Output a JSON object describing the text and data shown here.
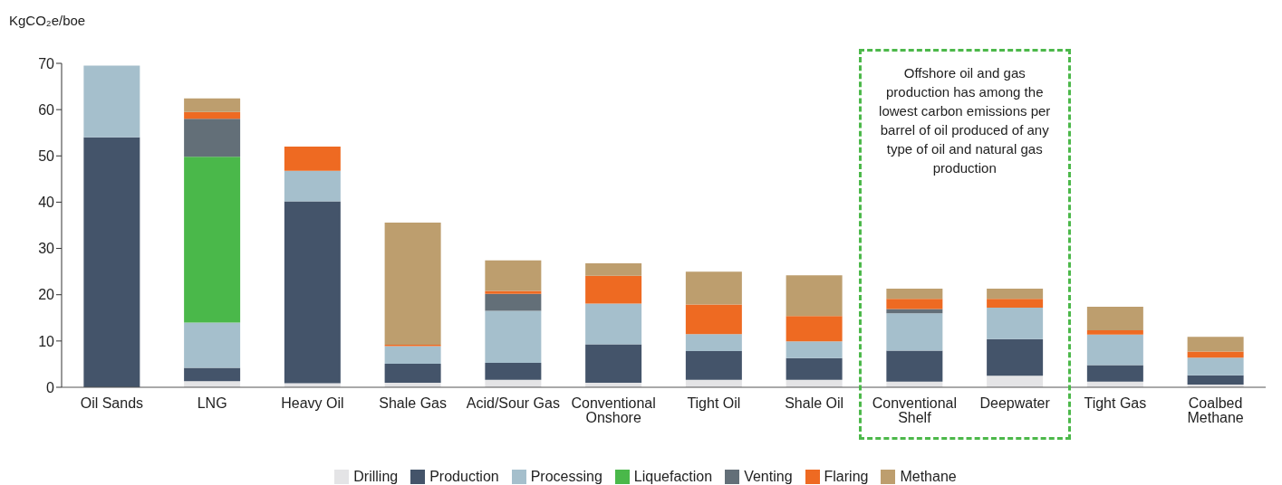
{
  "chart_data": {
    "type": "bar",
    "stacked": true,
    "ylabel": "KgCO₂e/boe",
    "categories": [
      "Oil Sands",
      "LNG",
      "Heavy Oil",
      "Shale Gas",
      "Acid/Sour Gas",
      "Conventional Onshore",
      "Tight Oil",
      "Shale Oil",
      "Conventional Shelf",
      "Deepwater",
      "Tight Gas",
      "Coalbed Methane"
    ],
    "series": [
      {
        "name": "Drilling",
        "color": "#e4e4e6",
        "values": [
          0,
          1.3,
          0.9,
          1.0,
          1.6,
          1.0,
          1.6,
          1.6,
          1.2,
          2.5,
          1.2,
          0.6
        ]
      },
      {
        "name": "Production",
        "color": "#44546a",
        "values": [
          54,
          2.9,
          39.3,
          4.1,
          3.7,
          8.3,
          6.2,
          4.7,
          6.7,
          7.9,
          3.6,
          2.0
        ]
      },
      {
        "name": "Processing",
        "color": "#a5bfcc",
        "values": [
          15.5,
          9.8,
          6.6,
          3.8,
          11.2,
          8.8,
          3.7,
          3.6,
          8.1,
          6.8,
          6.6,
          3.8
        ]
      },
      {
        "name": "Liquefaction",
        "color": "#4ab84a",
        "values": [
          0,
          35.8,
          0,
          0,
          0,
          0,
          0,
          0,
          0,
          0,
          0,
          0
        ]
      },
      {
        "name": "Venting",
        "color": "#636f78",
        "values": [
          0,
          8.2,
          0,
          0,
          3.7,
          0,
          0,
          0,
          0.9,
          0,
          0,
          0
        ]
      },
      {
        "name": "Flaring",
        "color": "#ee6a22",
        "values": [
          0,
          1.5,
          5.2,
          0.3,
          0.6,
          6.0,
          6.4,
          5.5,
          2.2,
          1.9,
          0.9,
          1.3
        ]
      },
      {
        "name": "Methane",
        "color": "#bd9e6e",
        "values": [
          0,
          2.9,
          0,
          26.4,
          6.6,
          2.7,
          7.1,
          8.8,
          2.2,
          2.2,
          5.1,
          3.2
        ]
      }
    ],
    "ylim": [
      0,
      70
    ],
    "yticks": [
      0,
      10,
      20,
      30,
      40,
      50,
      60,
      70
    ],
    "grid": false,
    "legend": "bottom",
    "annotations": [
      "Offshore oil and gas production has among the lowest carbon emissions per barrel of oil produced of any type of oil and natural gas production"
    ]
  }
}
